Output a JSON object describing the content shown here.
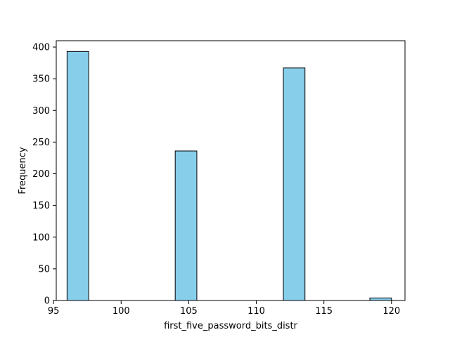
{
  "chart_data": {
    "type": "bar",
    "subtype": "histogram",
    "xlabel": "first_five_password_bits_distr",
    "ylabel": "Frequency",
    "xlim": [
      95.2,
      121.0
    ],
    "ylim": [
      0,
      410
    ],
    "xticks": [
      95,
      100,
      105,
      110,
      115,
      120
    ],
    "yticks": [
      0,
      50,
      100,
      150,
      200,
      250,
      300,
      350,
      400
    ],
    "bar_color": "#87ceeb",
    "edge_color": "#000000",
    "bins": [
      {
        "x0": 96.0,
        "x1": 97.6,
        "value": 393
      },
      {
        "x0": 97.6,
        "x1": 99.2,
        "value": 0
      },
      {
        "x0": 99.2,
        "x1": 100.8,
        "value": 0
      },
      {
        "x0": 100.8,
        "x1": 102.4,
        "value": 0
      },
      {
        "x0": 102.4,
        "x1": 104.0,
        "value": 0
      },
      {
        "x0": 104.0,
        "x1": 105.6,
        "value": 236
      },
      {
        "x0": 105.6,
        "x1": 107.2,
        "value": 0
      },
      {
        "x0": 107.2,
        "x1": 108.8,
        "value": 0
      },
      {
        "x0": 108.8,
        "x1": 110.4,
        "value": 0
      },
      {
        "x0": 110.4,
        "x1": 112.0,
        "value": 0
      },
      {
        "x0": 112.0,
        "x1": 113.6,
        "value": 367
      },
      {
        "x0": 113.6,
        "x1": 115.2,
        "value": 0
      },
      {
        "x0": 115.2,
        "x1": 116.8,
        "value": 0
      },
      {
        "x0": 116.8,
        "x1": 118.4,
        "value": 0
      },
      {
        "x0": 118.4,
        "x1": 120.0,
        "value": 4
      }
    ]
  }
}
